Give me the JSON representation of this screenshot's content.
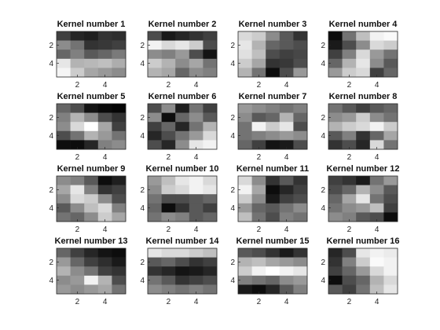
{
  "chart_data": {
    "type": "heatmap",
    "colormap": "gray",
    "value_range": [
      0,
      1
    ],
    "axis_tick_labels": {
      "x": [
        "2",
        "4"
      ],
      "y": [
        "2",
        "4"
      ]
    },
    "panels": [
      {
        "title": "Kernel number 1",
        "values": [
          [
            0.25,
            0.15,
            0.12,
            0.2,
            0.18
          ],
          [
            0.55,
            0.45,
            0.2,
            0.22,
            0.25
          ],
          [
            0.4,
            0.5,
            0.35,
            0.4,
            0.48
          ],
          [
            0.9,
            0.7,
            0.72,
            0.75,
            0.68
          ],
          [
            0.96,
            0.8,
            0.65,
            0.6,
            0.55
          ]
        ]
      },
      {
        "title": "Kernel number 2",
        "values": [
          [
            0.3,
            0.1,
            0.15,
            0.2,
            0.25
          ],
          [
            0.95,
            0.85,
            0.9,
            0.8,
            0.3
          ],
          [
            0.55,
            0.5,
            0.6,
            0.3,
            0.08
          ],
          [
            0.8,
            0.7,
            0.55,
            0.65,
            0.45
          ],
          [
            0.7,
            0.65,
            0.4,
            0.55,
            0.5
          ]
        ]
      },
      {
        "title": "Kernel number 3",
        "values": [
          [
            0.85,
            0.8,
            0.55,
            0.35,
            0.2
          ],
          [
            0.9,
            0.7,
            0.4,
            0.35,
            0.3
          ],
          [
            0.88,
            0.75,
            0.3,
            0.25,
            0.28
          ],
          [
            0.8,
            0.65,
            0.2,
            0.22,
            0.3
          ],
          [
            0.7,
            0.45,
            0.05,
            0.3,
            0.6
          ]
        ]
      },
      {
        "title": "Kernel number 4",
        "values": [
          [
            0.05,
            0.45,
            0.75,
            0.95,
            0.98
          ],
          [
            0.1,
            0.3,
            0.55,
            0.85,
            0.8
          ],
          [
            0.25,
            0.5,
            0.85,
            0.6,
            0.45
          ],
          [
            0.4,
            0.7,
            0.9,
            0.55,
            0.35
          ],
          [
            0.6,
            0.8,
            0.85,
            0.25,
            0.4
          ]
        ]
      },
      {
        "title": "Kernel number 5",
        "values": [
          [
            0.4,
            0.3,
            0.08,
            0.04,
            0.02
          ],
          [
            0.5,
            0.7,
            0.55,
            0.3,
            0.2
          ],
          [
            0.55,
            0.85,
            1.0,
            0.65,
            0.25
          ],
          [
            0.3,
            0.45,
            0.7,
            0.6,
            0.45
          ],
          [
            0.05,
            0.05,
            0.15,
            0.5,
            0.55
          ]
        ]
      },
      {
        "title": "Kernel number 6",
        "values": [
          [
            0.3,
            0.55,
            0.12,
            0.45,
            0.25
          ],
          [
            0.55,
            0.05,
            0.4,
            0.55,
            0.35
          ],
          [
            0.25,
            0.4,
            0.15,
            0.45,
            0.7
          ],
          [
            0.15,
            0.3,
            0.45,
            0.6,
            0.85
          ],
          [
            0.3,
            0.15,
            0.55,
            0.9,
            0.95
          ]
        ]
      },
      {
        "title": "Kernel number 7",
        "values": [
          [
            0.6,
            0.55,
            0.5,
            0.45,
            0.5
          ],
          [
            0.55,
            0.35,
            0.4,
            0.7,
            0.4
          ],
          [
            0.45,
            0.95,
            0.8,
            0.9,
            0.3
          ],
          [
            0.45,
            0.5,
            0.55,
            0.6,
            0.55
          ],
          [
            0.4,
            0.25,
            0.08,
            0.1,
            0.3
          ]
        ]
      },
      {
        "title": "Kernel number 8",
        "values": [
          [
            0.45,
            0.35,
            0.25,
            0.35,
            0.4
          ],
          [
            0.55,
            0.6,
            0.8,
            0.55,
            0.45
          ],
          [
            0.7,
            0.8,
            0.85,
            0.95,
            0.8
          ],
          [
            0.35,
            0.5,
            0.2,
            0.4,
            0.65
          ],
          [
            0.2,
            0.3,
            0.15,
            0.85,
            0.45
          ]
        ]
      },
      {
        "title": "Kernel number 9",
        "values": [
          [
            0.55,
            0.5,
            0.35,
            0.05,
            0.12
          ],
          [
            0.65,
            0.9,
            0.5,
            0.2,
            0.25
          ],
          [
            0.55,
            0.85,
            0.8,
            0.55,
            0.3
          ],
          [
            0.35,
            0.55,
            0.75,
            0.85,
            0.5
          ],
          [
            0.45,
            0.4,
            0.55,
            0.8,
            0.65
          ]
        ]
      },
      {
        "title": "Kernel number 10",
        "values": [
          [
            0.6,
            0.75,
            0.9,
            0.95,
            0.85
          ],
          [
            0.55,
            0.8,
            0.85,
            0.95,
            0.9
          ],
          [
            0.45,
            0.3,
            0.3,
            0.35,
            0.4
          ],
          [
            0.4,
            0.05,
            0.2,
            0.35,
            0.25
          ],
          [
            0.45,
            0.55,
            0.5,
            0.35,
            0.4
          ]
        ]
      },
      {
        "title": "Kernel number 11",
        "values": [
          [
            0.85,
            0.55,
            0.2,
            0.35,
            0.2
          ],
          [
            0.95,
            0.65,
            0.05,
            0.15,
            0.25
          ],
          [
            0.8,
            0.55,
            0.1,
            0.25,
            0.3
          ],
          [
            0.6,
            0.4,
            0.35,
            0.45,
            0.55
          ],
          [
            0.75,
            0.45,
            0.3,
            0.5,
            0.45
          ]
        ]
      },
      {
        "title": "Kernel number 12",
        "values": [
          [
            0.25,
            0.2,
            0.1,
            0.45,
            0.6
          ],
          [
            0.3,
            0.4,
            0.7,
            0.55,
            0.35
          ],
          [
            0.4,
            0.65,
            0.9,
            0.45,
            0.3
          ],
          [
            0.45,
            0.55,
            0.6,
            0.75,
            0.25
          ],
          [
            0.55,
            0.5,
            0.35,
            0.3,
            0.05
          ]
        ]
      },
      {
        "title": "Kernel number 13",
        "values": [
          [
            0.4,
            0.25,
            0.15,
            0.08,
            0.05
          ],
          [
            0.6,
            0.4,
            0.25,
            0.18,
            0.1
          ],
          [
            0.7,
            0.55,
            0.45,
            0.25,
            0.2
          ],
          [
            0.55,
            0.6,
            0.95,
            0.7,
            0.3
          ],
          [
            0.6,
            0.55,
            0.6,
            0.65,
            0.45
          ]
        ]
      },
      {
        "title": "Kernel number 14",
        "values": [
          [
            0.9,
            0.85,
            0.85,
            0.8,
            0.75
          ],
          [
            0.35,
            0.4,
            0.3,
            0.2,
            0.25
          ],
          [
            0.2,
            0.15,
            0.08,
            0.1,
            0.15
          ],
          [
            0.45,
            0.35,
            0.2,
            0.25,
            0.3
          ],
          [
            0.55,
            0.5,
            0.45,
            0.5,
            0.45
          ]
        ]
      },
      {
        "title": "Kernel number 15",
        "values": [
          [
            0.35,
            0.3,
            0.2,
            0.1,
            0.2
          ],
          [
            0.7,
            0.75,
            0.65,
            0.6,
            0.55
          ],
          [
            0.8,
            0.95,
            1.0,
            0.95,
            0.9
          ],
          [
            0.5,
            0.45,
            0.4,
            0.55,
            0.6
          ],
          [
            0.1,
            0.05,
            0.15,
            0.35,
            0.5
          ]
        ]
      },
      {
        "title": "Kernel number 16",
        "values": [
          [
            0.15,
            0.3,
            0.9,
            0.95,
            0.92
          ],
          [
            0.2,
            0.5,
            0.8,
            0.98,
            0.95
          ],
          [
            0.25,
            0.4,
            0.6,
            0.85,
            0.95
          ],
          [
            0.05,
            0.3,
            0.4,
            0.7,
            0.85
          ],
          [
            0.35,
            0.25,
            0.45,
            0.75,
            0.9
          ]
        ]
      }
    ]
  }
}
